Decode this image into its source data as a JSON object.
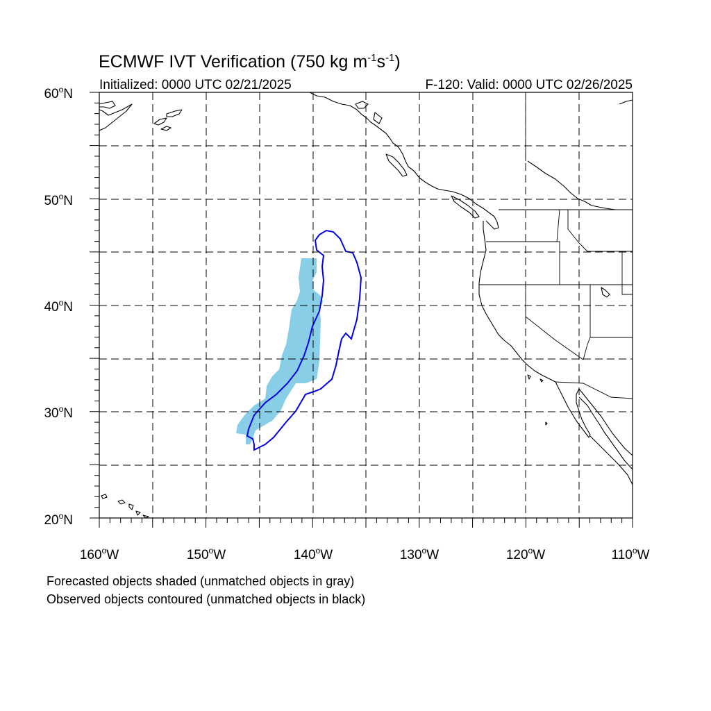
{
  "title": {
    "main": "ECMWF IVT Verification (750 kg m",
    "sup1": "-1",
    "mid": "s",
    "sup2": "-1",
    "end": ")"
  },
  "subtitle_left": "Initialized: 0000 UTC 02/21/2025",
  "subtitle_right": "F-120: Valid: 0000 UTC 02/26/2025",
  "lat_ticks": [
    {
      "deg": 60,
      "label": "60",
      "hemi": "N"
    },
    {
      "deg": 50,
      "label": "50",
      "hemi": "N"
    },
    {
      "deg": 40,
      "label": "40",
      "hemi": "N"
    },
    {
      "deg": 30,
      "label": "30",
      "hemi": "N"
    },
    {
      "deg": 20,
      "label": "20",
      "hemi": "N"
    }
  ],
  "lon_ticks": [
    {
      "deg": -160,
      "label": "160",
      "hemi": "W"
    },
    {
      "deg": -150,
      "label": "150",
      "hemi": "W"
    },
    {
      "deg": -140,
      "label": "140",
      "hemi": "W"
    },
    {
      "deg": -130,
      "label": "130",
      "hemi": "W"
    },
    {
      "deg": -120,
      "label": "120",
      "hemi": "W"
    },
    {
      "deg": -110,
      "label": "110",
      "hemi": "W"
    }
  ],
  "legend_note_1": "Forecasted objects shaded (unmatched objects in gray)",
  "legend_note_2": "Observed objects contoured (unmatched objects in black)",
  "colors": {
    "forecast_fill": "#87CEE6",
    "observed_contour": "#0000E6",
    "coastline": "#000000"
  }
}
